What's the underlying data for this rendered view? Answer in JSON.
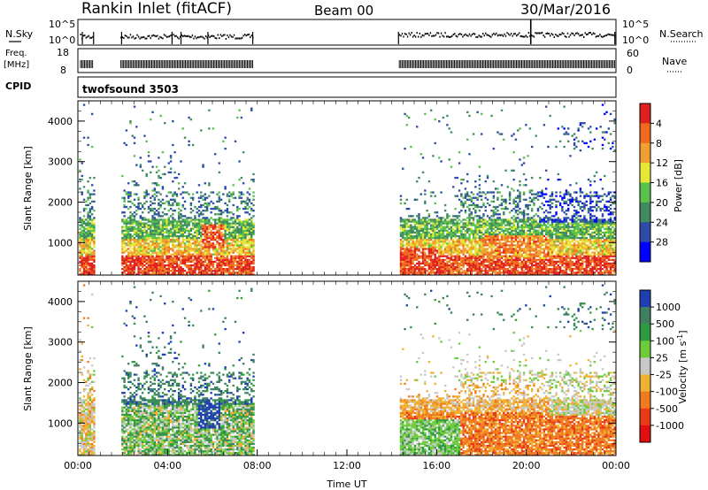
{
  "header": {
    "title": "Rankin Inlet (fitACF)",
    "beam": "Beam 00",
    "date": "30/Mar/2016"
  },
  "top_panels": {
    "nsky_label": "N.Sky",
    "nsky_ticks": [
      "10^5",
      "10^0"
    ],
    "nsearch_label": "N.Search",
    "nsearch_ticks": [
      "10^5",
      "10^0"
    ],
    "freq_label": "Freq.",
    "freq_unit": "[MHz]",
    "freq_ticks": [
      "18",
      "8"
    ],
    "nave_label": "Nave",
    "nave_ticks": [
      "60",
      "0"
    ],
    "cpid_label": "CPID",
    "cpid_value": "twofsound 3503"
  },
  "x_axis": {
    "label": "Time UT",
    "ticks": [
      "00:00",
      "04:00",
      "08:00",
      "12:00",
      "16:00",
      "20:00",
      "00:00"
    ],
    "hours": [
      0,
      4,
      8,
      12,
      16,
      20,
      24
    ],
    "range_hours": [
      0,
      24
    ]
  },
  "chart_data": [
    {
      "type": "heatmap",
      "name": "power",
      "ylabel": "Slant Range [km]",
      "yticks": [
        "1000",
        "2000",
        "3000",
        "4000"
      ],
      "ytick_values": [
        1000,
        2000,
        3000,
        4000
      ],
      "ylim": [
        200,
        4500
      ],
      "colorbar_label": "Power [dB]",
      "colorbar_ticks": [
        "4",
        "8",
        "12",
        "16",
        "20",
        "24",
        "28"
      ],
      "colorbar_tick_values": [
        4,
        8,
        12,
        16,
        20,
        24,
        28
      ],
      "colorbar_range": [
        0,
        32
      ],
      "colors": [
        "#0000ff",
        "#2d4ba8",
        "#3f8a5f",
        "#58c24a",
        "#e6e636",
        "#f0a030",
        "#f06a1e",
        "#e02020"
      ],
      "data_gaps_hours": [
        [
          0.7,
          1.9
        ],
        [
          7.8,
          14.3
        ]
      ]
    },
    {
      "type": "heatmap",
      "name": "velocity",
      "ylabel": "Slant Range [km]",
      "yticks": [
        "1000",
        "2000",
        "3000",
        "4000"
      ],
      "ytick_values": [
        1000,
        2000,
        3000,
        4000
      ],
      "ylim": [
        200,
        4500
      ],
      "colorbar_label": "Velocity [m s^-1]",
      "colorbar_ticks": [
        "1000",
        "500",
        "100",
        "25",
        "-25",
        "-100",
        "-500",
        "-1000"
      ],
      "colorbar_tick_values": [
        1000,
        500,
        100,
        25,
        -25,
        -100,
        -500,
        -1000
      ],
      "colors": [
        "#1e3fb0",
        "#3f8060",
        "#2f9a40",
        "#6ccc3a",
        "#c8c8c8",
        "#f0b030",
        "#f07a1e",
        "#e83a18",
        "#e01010"
      ],
      "data_gaps_hours": [
        [
          0.7,
          1.9
        ],
        [
          7.8,
          14.3
        ]
      ]
    }
  ]
}
